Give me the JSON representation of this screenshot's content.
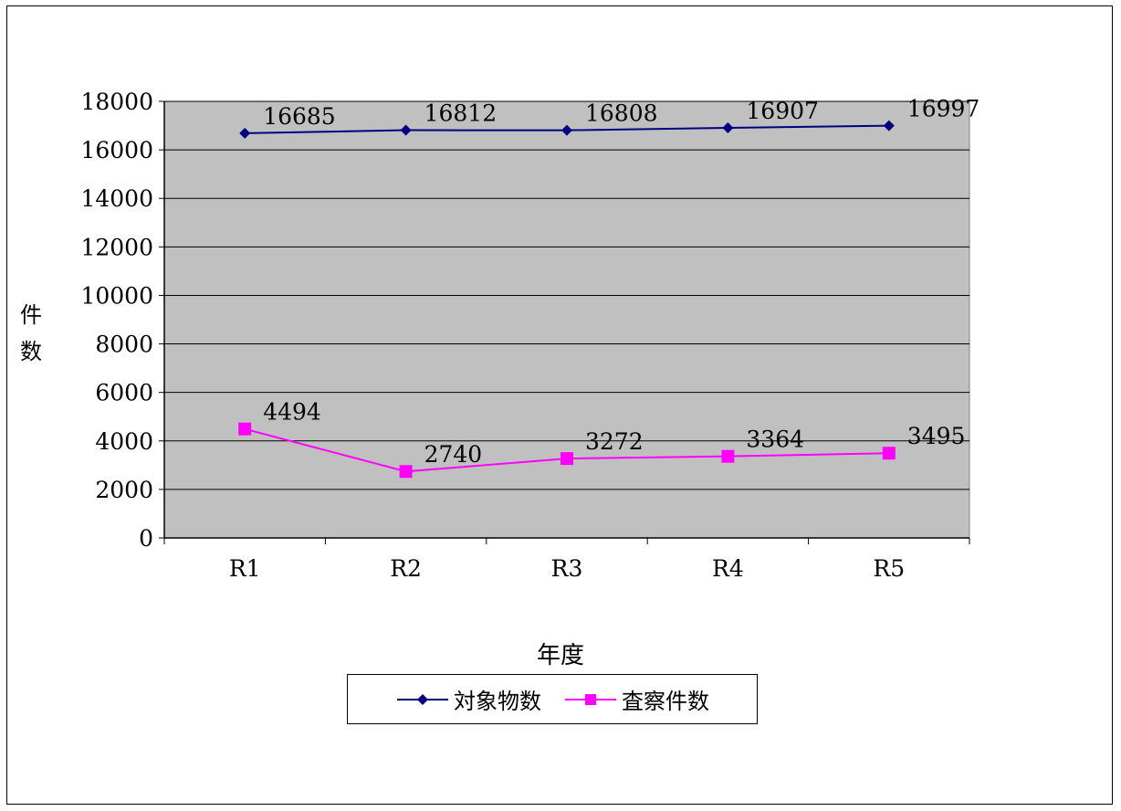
{
  "colors": {
    "plot_bg": "#c0c0c0",
    "series1": "#000080",
    "series2": "#ff00ff"
  },
  "chart_data": {
    "type": "line",
    "categories": [
      "R1",
      "R2",
      "R3",
      "R4",
      "R5"
    ],
    "series": [
      {
        "name": "対象物数",
        "values": [
          16685,
          16812,
          16808,
          16907,
          16997
        ],
        "marker": "diamond"
      },
      {
        "name": "査察件数",
        "values": [
          4494,
          2740,
          3272,
          3364,
          3495
        ],
        "marker": "square"
      }
    ],
    "xlabel": "年度",
    "ylabel": "件数",
    "ylim": [
      0,
      18000
    ],
    "yticks": [
      0,
      2000,
      4000,
      6000,
      8000,
      10000,
      12000,
      14000,
      16000,
      18000
    ],
    "grid": true,
    "legend": "bottom"
  }
}
